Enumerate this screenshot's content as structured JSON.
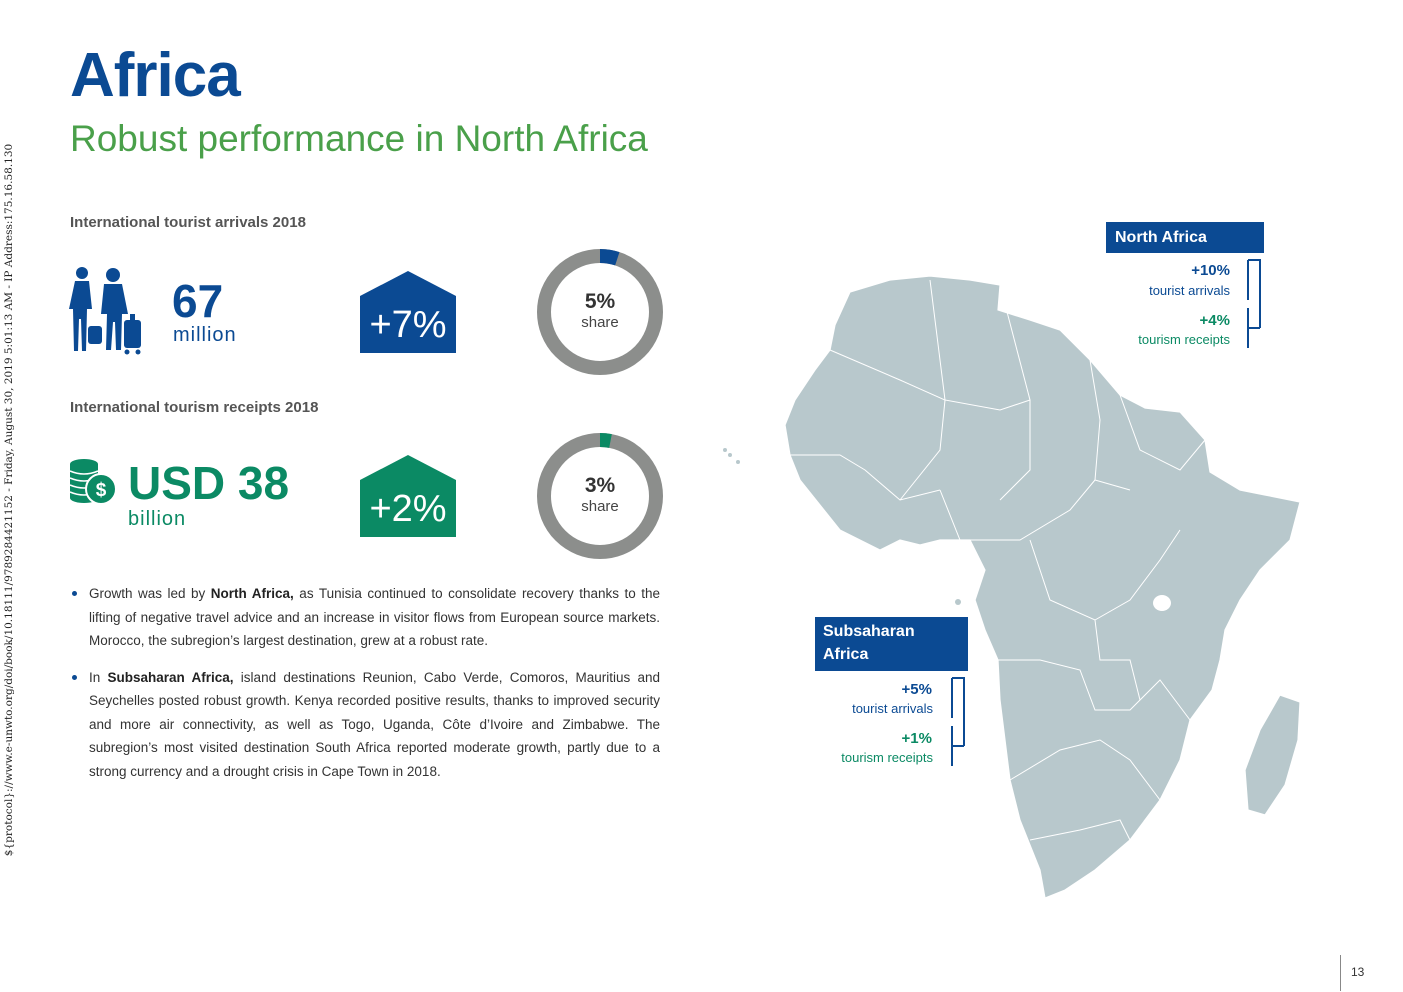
{
  "sidebar_text": "${protocol}://www.e-unwto.org/doi/book/10.18111/9789284421152 - Friday, August 30, 2019 5:01:13 AM - IP Address:175.16.58.130",
  "title": "Africa",
  "subtitle": "Robust performance in North Africa",
  "arrivals": {
    "label": "International tourist arrivals 2018",
    "value": "67",
    "unit": "million",
    "change": "+7%",
    "share_pct": "5%",
    "share_label": "share",
    "share_fraction": 0.05,
    "color": "#0b4a93"
  },
  "receipts": {
    "label": "International tourism receipts 2018",
    "value": "USD 38",
    "unit": "billion",
    "change": "+2%",
    "share_pct": "3%",
    "share_label": "share",
    "share_fraction": 0.03,
    "color": "#0b8a64"
  },
  "bullets": [
    {
      "pre": "Growth was led by ",
      "bold": "North Africa,",
      "post": " as Tunisia continued to consolidate recovery thanks to the lifting of negative travel advice and an increase in visitor flows from European source markets. Morocco, the subregion’s largest destination, grew at a robust rate."
    },
    {
      "pre": "In ",
      "bold": "Subsaharan Africa,",
      "post": " island destinations Reunion, Cabo Verde, Comoros, Mauritius and Seychelles posted robust growth. Kenya recorded positive results, thanks to improved security and more air connectivity, as well as Togo, Uganda, Côte d’Ivoire and Zimbabwe. The subregion’s most visited destination South Africa reported moderate growth, partly due to a strong currency and a drought crisis in Cape Town in 2018."
    }
  ],
  "north_africa": {
    "name": "North Africa",
    "arrivals_value": "+10%",
    "arrivals_label": "tourist arrivals",
    "receipts_value": "+4%",
    "receipts_label": "tourism receipts"
  },
  "subsaharan_africa": {
    "name_line1": "Subsaharan",
    "name_line2": "Africa",
    "arrivals_value": "+5%",
    "arrivals_label": "tourist arrivals",
    "receipts_value": "+1%",
    "receipts_label": "tourism receipts"
  },
  "page_number": "13",
  "colors": {
    "blue": "#0b4a93",
    "green": "#0b8a64",
    "title_green": "#4aa04a",
    "map_fill": "#b8c8cc",
    "donut_grey": "#8c8e8c"
  },
  "icons": [
    "travellers-icon",
    "coins-icon",
    "africa-map"
  ]
}
